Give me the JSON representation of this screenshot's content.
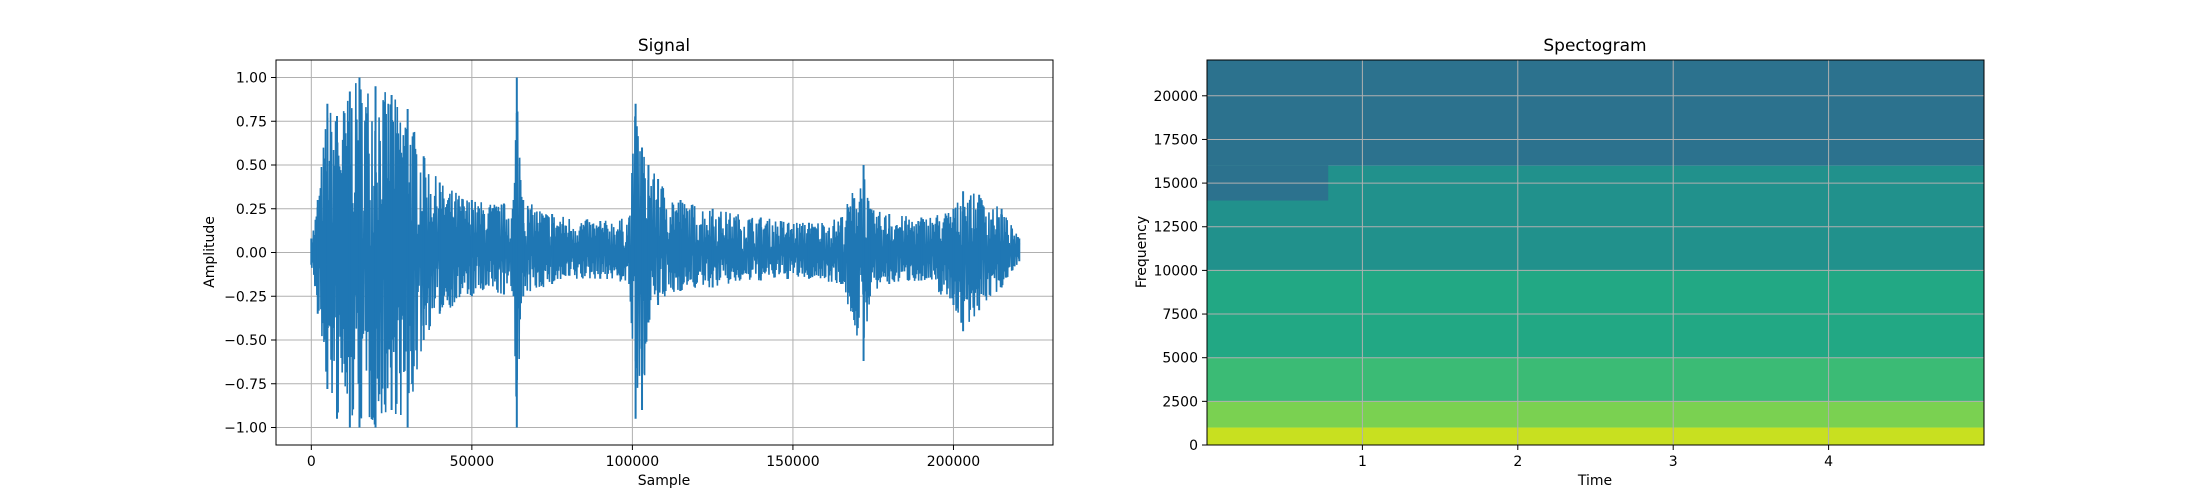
{
  "chart_data": [
    {
      "type": "line",
      "title": "Signal",
      "xlabel": "Sample",
      "ylabel": "Amplitude",
      "xlim": [
        -11000,
        231000
      ],
      "ylim": [
        -1.1,
        1.1
      ],
      "xticks": [
        0,
        50000,
        100000,
        150000,
        200000
      ],
      "xtick_labels": [
        "0",
        "50000",
        "100000",
        "150000",
        "200000"
      ],
      "yticks": [
        -1.0,
        -0.75,
        -0.5,
        -0.25,
        0.0,
        0.25,
        0.5,
        0.75,
        1.0
      ],
      "ytick_labels": [
        "−1.00",
        "−0.75",
        "−0.50",
        "−0.25",
        "0.00",
        "0.25",
        "0.50",
        "0.75",
        "1.00"
      ],
      "grid": true,
      "color": "#1f77b4",
      "series": [
        {
          "x": [
            0,
            2000,
            5000,
            8000,
            12000,
            15000,
            20000,
            25000,
            30000,
            35000,
            40000,
            50000,
            60000,
            63000,
            64000,
            66000,
            75000,
            90000,
            99000,
            101000,
            103000,
            105000,
            108000,
            115000,
            125000,
            140000,
            155000,
            165000,
            172000,
            174000,
            180000,
            190000,
            200000,
            203000,
            208000,
            215000,
            220500
          ],
          "env_upper": [
            0.08,
            0.3,
            0.85,
            0.78,
            0.92,
            1.0,
            0.95,
            0.9,
            0.82,
            0.55,
            0.4,
            0.3,
            0.28,
            0.3,
            1.0,
            0.3,
            0.22,
            0.18,
            0.2,
            0.85,
            0.6,
            0.5,
            0.42,
            0.3,
            0.25,
            0.2,
            0.17,
            0.2,
            0.5,
            0.25,
            0.22,
            0.2,
            0.25,
            0.35,
            0.33,
            0.25,
            0.08
          ],
          "env_lower": [
            -0.07,
            -0.35,
            -0.78,
            -0.95,
            -1.0,
            -1.0,
            -1.0,
            -0.9,
            -1.0,
            -0.5,
            -0.35,
            -0.25,
            -0.24,
            -0.25,
            -1.0,
            -0.25,
            -0.18,
            -0.15,
            -0.18,
            -0.95,
            -0.9,
            -0.4,
            -0.3,
            -0.22,
            -0.2,
            -0.16,
            -0.15,
            -0.18,
            -0.62,
            -0.25,
            -0.18,
            -0.16,
            -0.3,
            -0.45,
            -0.33,
            -0.2,
            -0.05
          ]
        }
      ]
    },
    {
      "type": "heatmap",
      "title": "Spectogram",
      "xlabel": "Time",
      "ylabel": "Frequency",
      "xlim": [
        0.0,
        5.0
      ],
      "ylim": [
        0,
        22050
      ],
      "xticks": [
        1,
        2,
        3,
        4
      ],
      "xtick_labels": [
        "1",
        "2",
        "3",
        "4"
      ],
      "yticks": [
        0,
        2500,
        5000,
        7500,
        10000,
        12500,
        15000,
        17500,
        20000
      ],
      "ytick_labels": [
        "0",
        "2500",
        "5000",
        "7500",
        "10000",
        "12500",
        "15000",
        "17500",
        "20000"
      ],
      "grid": true,
      "colormap": "viridis",
      "bands": [
        {
          "f_min": 0,
          "f_max": 1000,
          "color": "#c8e020"
        },
        {
          "f_min": 1000,
          "f_max": 2500,
          "color": "#7ad151"
        },
        {
          "f_min": 2500,
          "f_max": 5000,
          "color": "#3bbb75"
        },
        {
          "f_min": 5000,
          "f_max": 10000,
          "color": "#22a884"
        },
        {
          "f_min": 10000,
          "f_max": 16000,
          "color": "#21918c"
        },
        {
          "f_min": 16000,
          "f_max": 22050,
          "color": "#2c728e"
        }
      ],
      "dark_region": {
        "t_min": 0.0,
        "t_max": 0.78,
        "f_min": 14000,
        "f_max": 16000,
        "color": "#2c728e"
      }
    }
  ]
}
